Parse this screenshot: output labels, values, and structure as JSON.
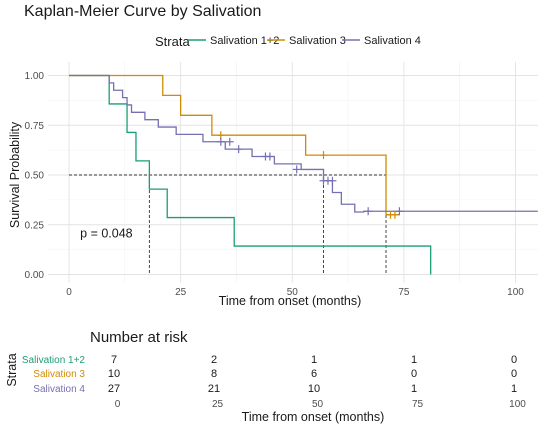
{
  "chart_data": {
    "type": "line",
    "subtype": "kaplan-meier",
    "title": "Kaplan-Meier Curve by Salivation",
    "xlabel": "Time from onset (months)",
    "ylabel": "Survival Probability",
    "xlim": [
      0,
      105
    ],
    "ylim": [
      0,
      1
    ],
    "x_ticks": [
      0,
      25,
      50,
      75,
      100
    ],
    "y_ticks": [
      0,
      0.25,
      0.5,
      0.75,
      1
    ],
    "y_tick_labels": [
      "0.00",
      "0.25",
      "0.50",
      "0.75",
      "1.00"
    ],
    "grid": true,
    "legend_title": "Strata",
    "legend_position": "top",
    "annotation": "p = 0.048",
    "annotation_position": {
      "x": 2.5,
      "y": 0.185
    },
    "median_lines": [
      {
        "x": 18,
        "y": 0.5
      },
      {
        "x": 57,
        "y": 0.5
      },
      {
        "x": 71,
        "y": 0.5
      }
    ],
    "series": [
      {
        "name": "Salivation 1+2",
        "color": "#1b9e77",
        "steps": [
          [
            0,
            1.0
          ],
          [
            9,
            0.857
          ],
          [
            13,
            0.714
          ],
          [
            15,
            0.571
          ],
          [
            18,
            0.429
          ],
          [
            22,
            0.286
          ],
          [
            37,
            0.143
          ],
          [
            81,
            0.0
          ]
        ],
        "end_x": 81,
        "censored": []
      },
      {
        "name": "Salivation 3",
        "color": "#d08b04",
        "steps": [
          [
            0,
            1.0
          ],
          [
            21,
            0.9
          ],
          [
            25,
            0.8
          ],
          [
            32,
            0.7
          ],
          [
            53,
            0.6
          ],
          [
            71,
            0.3
          ]
        ],
        "end_x": 74,
        "censored": [
          [
            34,
            0.7
          ],
          [
            57,
            0.6
          ],
          [
            72,
            0.3
          ],
          [
            73,
            0.3
          ]
        ]
      },
      {
        "name": "Salivation 4",
        "color": "#7570b3",
        "steps": [
          [
            0,
            1.0
          ],
          [
            9,
            0.963
          ],
          [
            10,
            0.926
          ],
          [
            12,
            0.889
          ],
          [
            13,
            0.852
          ],
          [
            14,
            0.815
          ],
          [
            17,
            0.778
          ],
          [
            20,
            0.741
          ],
          [
            24,
            0.704
          ],
          [
            30,
            0.667
          ],
          [
            35,
            0.63
          ],
          [
            41,
            0.593
          ],
          [
            46,
            0.556
          ],
          [
            52,
            0.528
          ],
          [
            57,
            0.471
          ],
          [
            59,
            0.412
          ],
          [
            61,
            0.353
          ],
          [
            64,
            0.314
          ],
          [
            66,
            0.318
          ]
        ],
        "end_x": 105,
        "censored": [
          [
            34,
            0.667
          ],
          [
            36,
            0.667
          ],
          [
            38,
            0.63
          ],
          [
            44,
            0.593
          ],
          [
            45,
            0.593
          ],
          [
            51,
            0.528
          ],
          [
            57,
            0.471
          ],
          [
            58,
            0.471
          ],
          [
            59,
            0.471
          ],
          [
            67,
            0.318
          ],
          [
            74,
            0.318
          ]
        ]
      }
    ]
  },
  "risk_table": {
    "title": "Number at risk",
    "y_axis_label": "Strata",
    "x_axis_label": "Time from onset (months)",
    "x_ticks": [
      0,
      25,
      50,
      75,
      100
    ],
    "rows": [
      {
        "label": "Salivation 1+2",
        "color": "#1b9e77",
        "values": [
          7,
          2,
          1,
          1,
          0
        ]
      },
      {
        "label": "Salivation 3",
        "color": "#d08b04",
        "values": [
          10,
          8,
          6,
          0,
          0
        ]
      },
      {
        "label": "Salivation 4",
        "color": "#7570b3",
        "values": [
          27,
          21,
          10,
          1,
          1
        ]
      }
    ]
  }
}
